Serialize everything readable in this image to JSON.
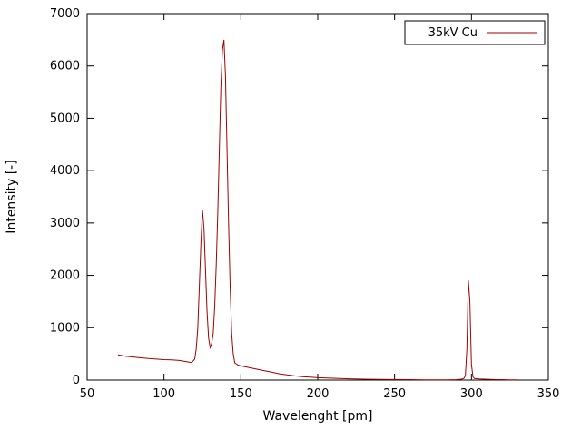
{
  "chart_data": {
    "type": "line",
    "title": "",
    "xlabel": "Wavelenght [pm]",
    "ylabel": "Intensity [-]",
    "xlim": [
      50,
      350
    ],
    "ylim": [
      0,
      7000
    ],
    "xticks": [
      50,
      100,
      150,
      200,
      250,
      300,
      350
    ],
    "yticks": [
      0,
      1000,
      2000,
      3000,
      4000,
      5000,
      6000,
      7000
    ],
    "grid": false,
    "legend_position": "top-right",
    "axis_color": "#000000",
    "background_color": "#ffffff",
    "series": [
      {
        "name": "35kV Cu",
        "color": "#a00000",
        "x": [
          70,
          75,
          80,
          85,
          90,
          95,
          100,
          105,
          110,
          113,
          116,
          118,
          120,
          121,
          122,
          123,
          124,
          125,
          126,
          127,
          128,
          129,
          130,
          131,
          132,
          133,
          134,
          135,
          136,
          137,
          138,
          139,
          140,
          141,
          142,
          143,
          144,
          145,
          146,
          148,
          150,
          155,
          160,
          165,
          170,
          175,
          180,
          185,
          190,
          195,
          200,
          210,
          220,
          230,
          240,
          250,
          260,
          270,
          280,
          285,
          290,
          293,
          295,
          296,
          297,
          298,
          299,
          300,
          301,
          302,
          305,
          310,
          315,
          320,
          325,
          330
        ],
        "y": [
          480,
          455,
          440,
          425,
          410,
          400,
          390,
          385,
          375,
          360,
          345,
          335,
          400,
          600,
          1000,
          1800,
          2600,
          3250,
          2900,
          2100,
          1300,
          800,
          620,
          700,
          900,
          1400,
          2200,
          3200,
          4400,
          5600,
          6300,
          6500,
          5800,
          4400,
          3000,
          1800,
          900,
          500,
          330,
          290,
          270,
          240,
          210,
          180,
          150,
          120,
          100,
          80,
          65,
          55,
          45,
          35,
          25,
          18,
          14,
          10,
          8,
          6,
          5,
          5,
          8,
          15,
          30,
          80,
          600,
          1900,
          1500,
          300,
          60,
          30,
          20,
          15,
          10,
          8,
          5,
          3
        ]
      }
    ]
  }
}
